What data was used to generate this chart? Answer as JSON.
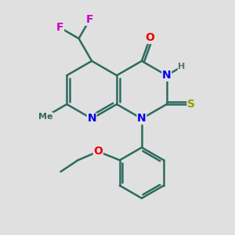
{
  "bg_color": "#e0e0e0",
  "bond_color": "#2d6b5e",
  "bond_width": 1.8,
  "atom_colors": {
    "N": "#0000ee",
    "O": "#ee0000",
    "S": "#999900",
    "F": "#cc00cc",
    "C": "#2d6b5e",
    "H": "#607060"
  },
  "font_size": 10,
  "fig_size": [
    3.0,
    3.0
  ],
  "dpi": 100
}
